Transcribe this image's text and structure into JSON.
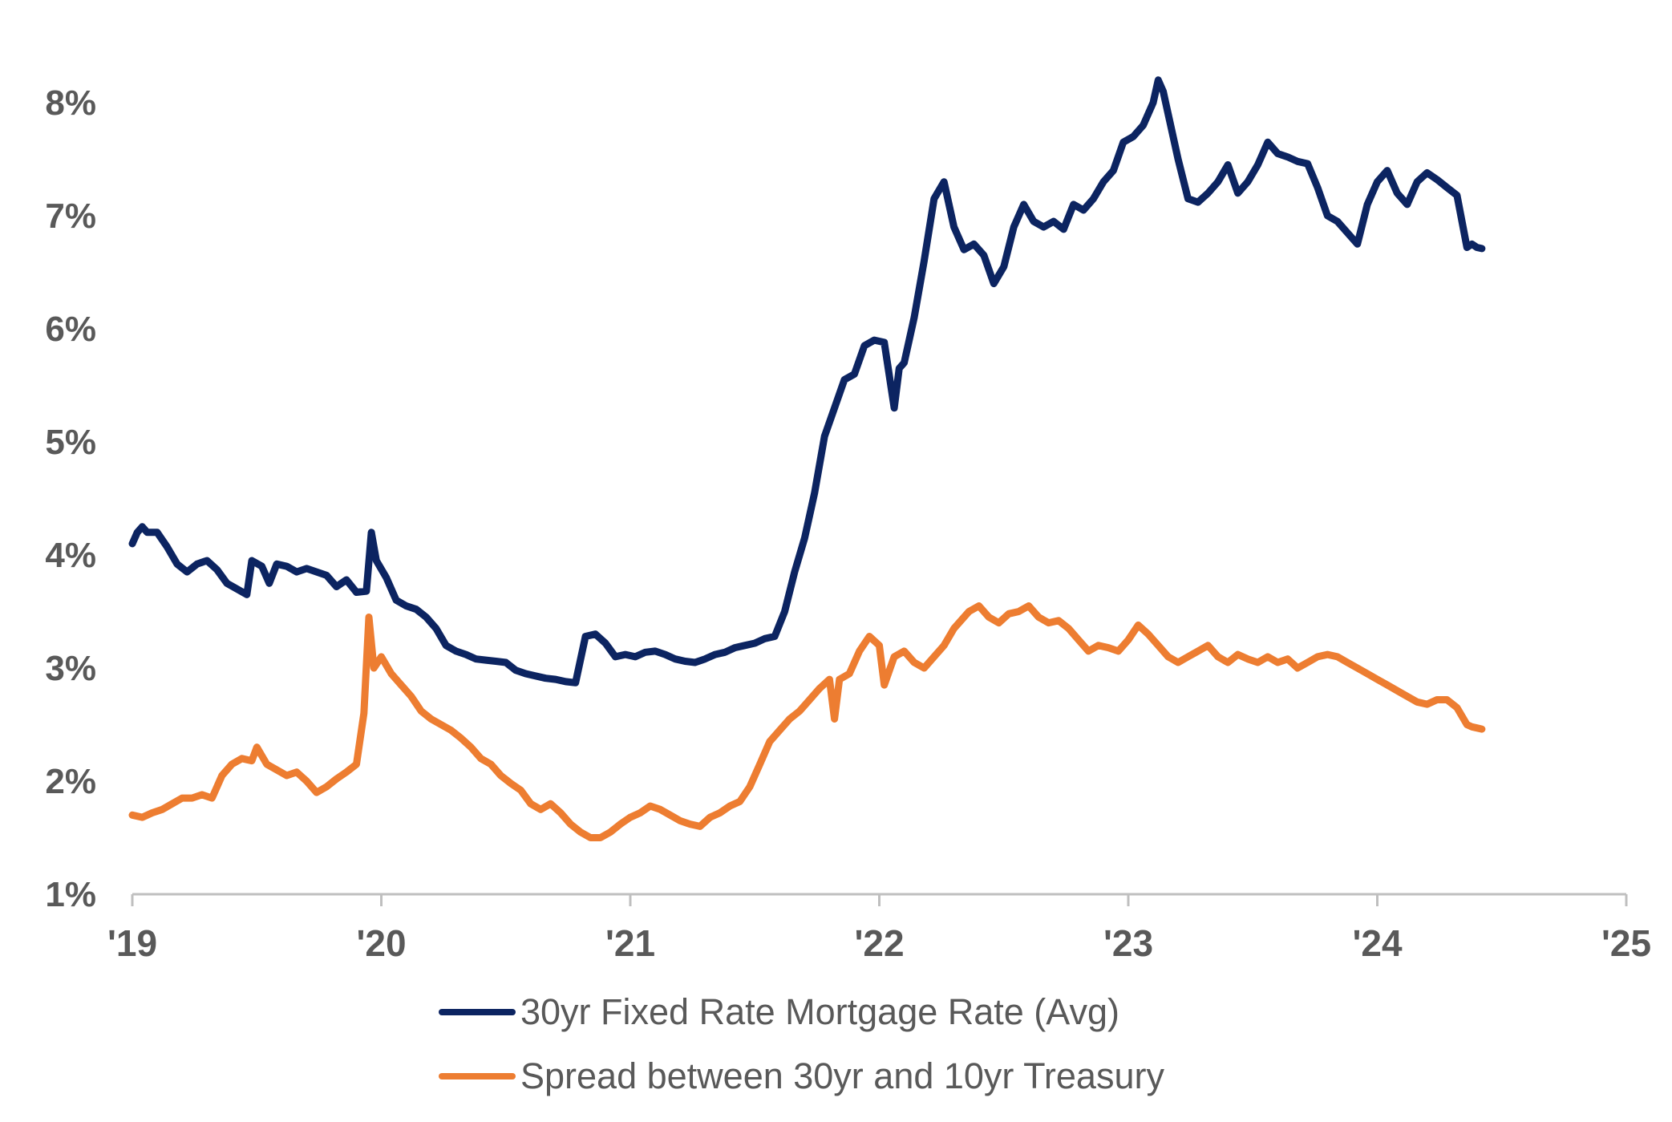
{
  "chart_data": {
    "type": "line",
    "title": "",
    "xlabel": "",
    "ylabel": "",
    "x_ticks": [
      "'19",
      "'20",
      "'21",
      "'22",
      "'23",
      "'24",
      "'25"
    ],
    "x_range": [
      2019.0,
      2025.0
    ],
    "y_ticks": [
      "1%",
      "2%",
      "3%",
      "4%",
      "5%",
      "6%",
      "7%",
      "8%"
    ],
    "ylim": [
      1,
      8.5
    ],
    "grid": false,
    "legend_position": "bottom",
    "series": [
      {
        "name": "30yr Fixed Rate Mortgage Rate (Avg)",
        "color": "#0c2461",
        "points": [
          [
            2019.0,
            4.1
          ],
          [
            2019.02,
            4.2
          ],
          [
            2019.04,
            4.25
          ],
          [
            2019.06,
            4.2
          ],
          [
            2019.1,
            4.2
          ],
          [
            2019.14,
            4.07
          ],
          [
            2019.18,
            3.92
          ],
          [
            2019.22,
            3.85
          ],
          [
            2019.26,
            3.92
          ],
          [
            2019.3,
            3.95
          ],
          [
            2019.34,
            3.87
          ],
          [
            2019.38,
            3.75
          ],
          [
            2019.42,
            3.7
          ],
          [
            2019.46,
            3.65
          ],
          [
            2019.48,
            3.95
          ],
          [
            2019.52,
            3.9
          ],
          [
            2019.55,
            3.75
          ],
          [
            2019.58,
            3.92
          ],
          [
            2019.62,
            3.9
          ],
          [
            2019.66,
            3.85
          ],
          [
            2019.7,
            3.88
          ],
          [
            2019.74,
            3.85
          ],
          [
            2019.78,
            3.82
          ],
          [
            2019.82,
            3.72
          ],
          [
            2019.86,
            3.78
          ],
          [
            2019.9,
            3.67
          ],
          [
            2019.94,
            3.68
          ],
          [
            2019.96,
            4.2
          ],
          [
            2019.98,
            3.95
          ],
          [
            2020.02,
            3.8
          ],
          [
            2020.06,
            3.6
          ],
          [
            2020.1,
            3.55
          ],
          [
            2020.14,
            3.52
          ],
          [
            2020.18,
            3.45
          ],
          [
            2020.22,
            3.35
          ],
          [
            2020.26,
            3.2
          ],
          [
            2020.3,
            3.15
          ],
          [
            2020.34,
            3.12
          ],
          [
            2020.38,
            3.08
          ],
          [
            2020.42,
            3.07
          ],
          [
            2020.46,
            3.06
          ],
          [
            2020.5,
            3.05
          ],
          [
            2020.54,
            2.98
          ],
          [
            2020.58,
            2.95
          ],
          [
            2020.62,
            2.93
          ],
          [
            2020.66,
            2.91
          ],
          [
            2020.7,
            2.9
          ],
          [
            2020.74,
            2.88
          ],
          [
            2020.78,
            2.87
          ],
          [
            2020.82,
            3.28
          ],
          [
            2020.86,
            3.3
          ],
          [
            2020.9,
            3.22
          ],
          [
            2020.94,
            3.1
          ],
          [
            2020.98,
            3.12
          ],
          [
            2021.02,
            3.1
          ],
          [
            2021.06,
            3.14
          ],
          [
            2021.1,
            3.15
          ],
          [
            2021.14,
            3.12
          ],
          [
            2021.18,
            3.08
          ],
          [
            2021.22,
            3.06
          ],
          [
            2021.26,
            3.05
          ],
          [
            2021.3,
            3.08
          ],
          [
            2021.34,
            3.12
          ],
          [
            2021.38,
            3.14
          ],
          [
            2021.42,
            3.18
          ],
          [
            2021.46,
            3.2
          ],
          [
            2021.5,
            3.22
          ],
          [
            2021.54,
            3.26
          ],
          [
            2021.58,
            3.28
          ],
          [
            2021.62,
            3.5
          ],
          [
            2021.66,
            3.85
          ],
          [
            2021.7,
            4.15
          ],
          [
            2021.74,
            4.55
          ],
          [
            2021.78,
            5.05
          ],
          [
            2021.82,
            5.3
          ],
          [
            2021.86,
            5.55
          ],
          [
            2021.9,
            5.6
          ],
          [
            2021.94,
            5.85
          ],
          [
            2021.98,
            5.9
          ],
          [
            2022.02,
            5.88
          ],
          [
            2022.06,
            5.3
          ],
          [
            2022.08,
            5.65
          ],
          [
            2022.1,
            5.7
          ],
          [
            2022.14,
            6.1
          ],
          [
            2022.18,
            6.6
          ],
          [
            2022.22,
            7.15
          ],
          [
            2022.26,
            7.3
          ],
          [
            2022.3,
            6.9
          ],
          [
            2022.34,
            6.7
          ],
          [
            2022.38,
            6.75
          ],
          [
            2022.42,
            6.65
          ],
          [
            2022.46,
            6.4
          ],
          [
            2022.5,
            6.55
          ],
          [
            2022.54,
            6.9
          ],
          [
            2022.58,
            7.1
          ],
          [
            2022.62,
            6.95
          ],
          [
            2022.66,
            6.9
          ],
          [
            2022.7,
            6.95
          ],
          [
            2022.74,
            6.88
          ],
          [
            2022.78,
            7.1
          ],
          [
            2022.82,
            7.05
          ],
          [
            2022.86,
            7.15
          ],
          [
            2022.9,
            7.3
          ],
          [
            2022.94,
            7.4
          ],
          [
            2022.98,
            7.65
          ],
          [
            2023.02,
            7.7
          ],
          [
            2023.06,
            7.8
          ],
          [
            2023.1,
            8.0
          ],
          [
            2023.12,
            8.2
          ],
          [
            2023.14,
            8.1
          ],
          [
            2023.16,
            7.9
          ],
          [
            2023.2,
            7.5
          ],
          [
            2023.24,
            7.15
          ],
          [
            2023.28,
            7.12
          ],
          [
            2023.32,
            7.2
          ],
          [
            2023.36,
            7.3
          ],
          [
            2023.4,
            7.45
          ],
          [
            2023.44,
            7.2
          ],
          [
            2023.48,
            7.3
          ],
          [
            2023.52,
            7.45
          ],
          [
            2023.56,
            7.65
          ],
          [
            2023.6,
            7.55
          ],
          [
            2023.64,
            7.52
          ],
          [
            2023.68,
            7.48
          ],
          [
            2023.72,
            7.46
          ],
          [
            2023.76,
            7.25
          ],
          [
            2023.8,
            7.0
          ],
          [
            2023.84,
            6.95
          ],
          [
            2023.88,
            6.85
          ],
          [
            2023.92,
            6.75
          ],
          [
            2023.96,
            7.1
          ],
          [
            2024.0,
            7.3
          ],
          [
            2024.04,
            7.4
          ],
          [
            2024.08,
            7.2
          ],
          [
            2024.12,
            7.1
          ],
          [
            2024.16,
            7.3
          ],
          [
            2024.2,
            7.38
          ],
          [
            2024.24,
            7.32
          ],
          [
            2024.28,
            7.25
          ],
          [
            2024.32,
            7.18
          ],
          [
            2024.36,
            6.72
          ],
          [
            2024.38,
            6.75
          ],
          [
            2024.4,
            6.72
          ],
          [
            2024.42,
            6.71
          ]
        ]
      },
      {
        "name": "Spread between 30yr and 10yr Treasury",
        "color": "#ed7d31",
        "points": [
          [
            2019.0,
            1.7
          ],
          [
            2019.04,
            1.68
          ],
          [
            2019.08,
            1.72
          ],
          [
            2019.12,
            1.75
          ],
          [
            2019.16,
            1.8
          ],
          [
            2019.2,
            1.85
          ],
          [
            2019.24,
            1.85
          ],
          [
            2019.28,
            1.88
          ],
          [
            2019.32,
            1.85
          ],
          [
            2019.36,
            2.05
          ],
          [
            2019.4,
            2.15
          ],
          [
            2019.44,
            2.2
          ],
          [
            2019.48,
            2.18
          ],
          [
            2019.5,
            2.3
          ],
          [
            2019.54,
            2.15
          ],
          [
            2019.58,
            2.1
          ],
          [
            2019.62,
            2.05
          ],
          [
            2019.66,
            2.08
          ],
          [
            2019.7,
            2.0
          ],
          [
            2019.74,
            1.9
          ],
          [
            2019.78,
            1.95
          ],
          [
            2019.82,
            2.02
          ],
          [
            2019.86,
            2.08
          ],
          [
            2019.9,
            2.15
          ],
          [
            2019.93,
            2.6
          ],
          [
            2019.95,
            3.45
          ],
          [
            2019.97,
            3.0
          ],
          [
            2020.0,
            3.1
          ],
          [
            2020.04,
            2.95
          ],
          [
            2020.08,
            2.85
          ],
          [
            2020.12,
            2.75
          ],
          [
            2020.16,
            2.62
          ],
          [
            2020.2,
            2.55
          ],
          [
            2020.24,
            2.5
          ],
          [
            2020.28,
            2.45
          ],
          [
            2020.32,
            2.38
          ],
          [
            2020.36,
            2.3
          ],
          [
            2020.4,
            2.2
          ],
          [
            2020.44,
            2.15
          ],
          [
            2020.48,
            2.05
          ],
          [
            2020.52,
            1.98
          ],
          [
            2020.56,
            1.92
          ],
          [
            2020.6,
            1.8
          ],
          [
            2020.64,
            1.75
          ],
          [
            2020.68,
            1.8
          ],
          [
            2020.72,
            1.72
          ],
          [
            2020.76,
            1.62
          ],
          [
            2020.8,
            1.55
          ],
          [
            2020.84,
            1.5
          ],
          [
            2020.88,
            1.5
          ],
          [
            2020.92,
            1.55
          ],
          [
            2020.96,
            1.62
          ],
          [
            2021.0,
            1.68
          ],
          [
            2021.04,
            1.72
          ],
          [
            2021.08,
            1.78
          ],
          [
            2021.12,
            1.75
          ],
          [
            2021.16,
            1.7
          ],
          [
            2021.2,
            1.65
          ],
          [
            2021.24,
            1.62
          ],
          [
            2021.28,
            1.6
          ],
          [
            2021.32,
            1.68
          ],
          [
            2021.36,
            1.72
          ],
          [
            2021.4,
            1.78
          ],
          [
            2021.44,
            1.82
          ],
          [
            2021.48,
            1.95
          ],
          [
            2021.52,
            2.15
          ],
          [
            2021.56,
            2.35
          ],
          [
            2021.6,
            2.45
          ],
          [
            2021.64,
            2.55
          ],
          [
            2021.68,
            2.62
          ],
          [
            2021.72,
            2.72
          ],
          [
            2021.76,
            2.82
          ],
          [
            2021.8,
            2.9
          ],
          [
            2021.82,
            2.55
          ],
          [
            2021.84,
            2.9
          ],
          [
            2021.88,
            2.95
          ],
          [
            2021.92,
            3.15
          ],
          [
            2021.96,
            3.28
          ],
          [
            2022.0,
            3.2
          ],
          [
            2022.02,
            2.85
          ],
          [
            2022.06,
            3.1
          ],
          [
            2022.1,
            3.15
          ],
          [
            2022.14,
            3.05
          ],
          [
            2022.18,
            3.0
          ],
          [
            2022.22,
            3.1
          ],
          [
            2022.26,
            3.2
          ],
          [
            2022.3,
            3.35
          ],
          [
            2022.34,
            3.45
          ],
          [
            2022.36,
            3.5
          ],
          [
            2022.4,
            3.55
          ],
          [
            2022.44,
            3.45
          ],
          [
            2022.48,
            3.4
          ],
          [
            2022.52,
            3.48
          ],
          [
            2022.56,
            3.5
          ],
          [
            2022.6,
            3.55
          ],
          [
            2022.64,
            3.45
          ],
          [
            2022.68,
            3.4
          ],
          [
            2022.72,
            3.42
          ],
          [
            2022.76,
            3.35
          ],
          [
            2022.8,
            3.25
          ],
          [
            2022.84,
            3.15
          ],
          [
            2022.88,
            3.2
          ],
          [
            2022.92,
            3.18
          ],
          [
            2022.96,
            3.15
          ],
          [
            2023.0,
            3.25
          ],
          [
            2023.04,
            3.38
          ],
          [
            2023.08,
            3.3
          ],
          [
            2023.12,
            3.2
          ],
          [
            2023.16,
            3.1
          ],
          [
            2023.2,
            3.05
          ],
          [
            2023.24,
            3.1
          ],
          [
            2023.28,
            3.15
          ],
          [
            2023.32,
            3.2
          ],
          [
            2023.36,
            3.1
          ],
          [
            2023.4,
            3.05
          ],
          [
            2023.44,
            3.12
          ],
          [
            2023.48,
            3.08
          ],
          [
            2023.52,
            3.05
          ],
          [
            2023.56,
            3.1
          ],
          [
            2023.6,
            3.05
          ],
          [
            2023.64,
            3.08
          ],
          [
            2023.68,
            3.0
          ],
          [
            2023.72,
            3.05
          ],
          [
            2023.76,
            3.1
          ],
          [
            2023.8,
            3.12
          ],
          [
            2023.84,
            3.1
          ],
          [
            2023.88,
            3.05
          ],
          [
            2023.92,
            3.0
          ],
          [
            2023.96,
            2.95
          ],
          [
            2024.0,
            2.9
          ],
          [
            2024.04,
            2.85
          ],
          [
            2024.08,
            2.8
          ],
          [
            2024.12,
            2.75
          ],
          [
            2024.16,
            2.7
          ],
          [
            2024.2,
            2.68
          ],
          [
            2024.24,
            2.72
          ],
          [
            2024.28,
            2.72
          ],
          [
            2024.32,
            2.65
          ],
          [
            2024.36,
            2.5
          ],
          [
            2024.38,
            2.48
          ],
          [
            2024.4,
            2.47
          ],
          [
            2024.42,
            2.46
          ]
        ]
      }
    ]
  }
}
